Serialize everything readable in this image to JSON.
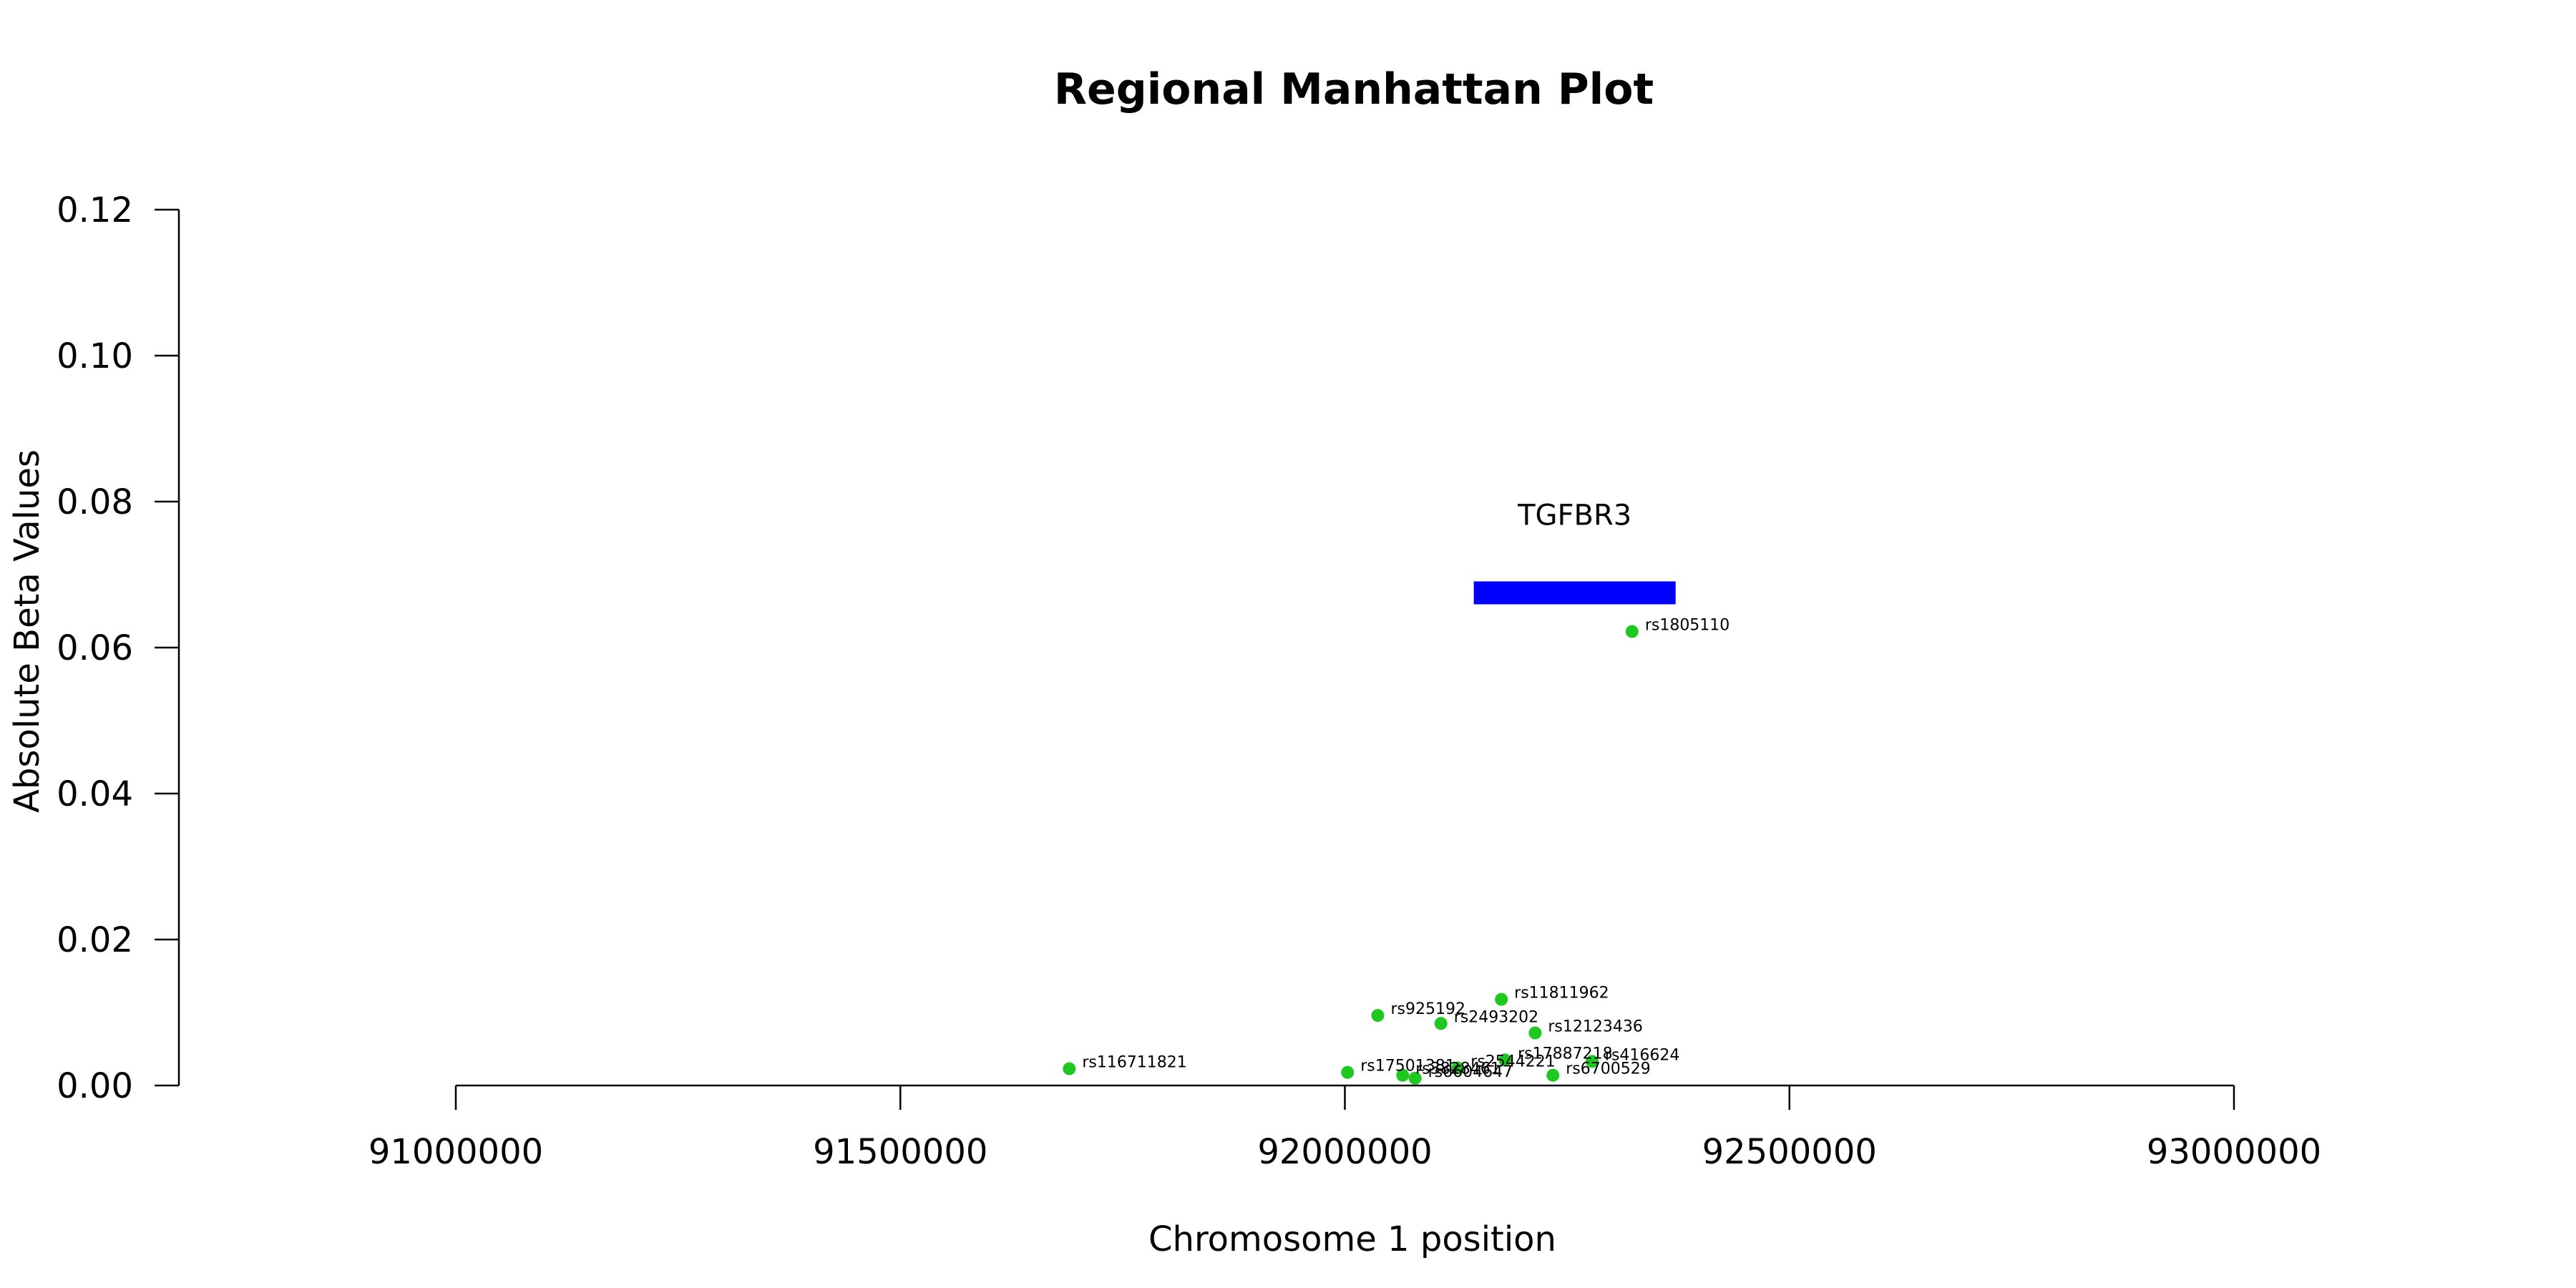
{
  "chart_data": {
    "type": "scatter",
    "title": "Regional Manhattan Plot",
    "xlabel": "Chromosome 1 position",
    "ylabel": "Absolute Beta Values",
    "xlim": [
      91000000,
      93000000
    ],
    "ylim": [
      0,
      0.12
    ],
    "x_ticks": [
      91000000,
      91500000,
      92000000,
      92500000,
      93000000
    ],
    "y_ticks": [
      0.0,
      0.02,
      0.04,
      0.06,
      0.08,
      0.1,
      0.12
    ],
    "x_tick_labels": [
      "91000000",
      "91500000",
      "92000000",
      "92500000",
      "93000000"
    ],
    "y_tick_labels": [
      "0.00",
      "0.02",
      "0.04",
      "0.06",
      "0.08",
      "0.10",
      "0.12"
    ],
    "grid": false,
    "point_color": "#1ec81e",
    "gene_color": "#0000ff",
    "genes": [
      {
        "name": "TGFBR3",
        "start": 92145000,
        "end": 92372000,
        "y": 0.0675
      }
    ],
    "points": [
      {
        "label": "rs116711821",
        "x": 91690000,
        "y": 0.0023
      },
      {
        "label": "rs17501381",
        "x": 92003000,
        "y": 0.0018
      },
      {
        "label": "rs925192",
        "x": 92037000,
        "y": 0.0096
      },
      {
        "label": "rs3828461",
        "x": 92065000,
        "y": 0.0014
      },
      {
        "label": "rs6604647",
        "x": 92079000,
        "y": 0.001
      },
      {
        "label": "rs2493202",
        "x": 92108000,
        "y": 0.0085
      },
      {
        "label": "rs2544221",
        "x": 92127000,
        "y": 0.0024
      },
      {
        "label": "rs11811962",
        "x": 92176000,
        "y": 0.0118
      },
      {
        "label": "rs17887218",
        "x": 92180000,
        "y": 0.0035
      },
      {
        "label": "rs12123436",
        "x": 92214000,
        "y": 0.0072
      },
      {
        "label": "rs6700529",
        "x": 92234000,
        "y": 0.0014
      },
      {
        "label": "rs416624",
        "x": 92278000,
        "y": 0.0033
      },
      {
        "label": "rs1805110",
        "x": 92323000,
        "y": 0.0622
      }
    ]
  }
}
